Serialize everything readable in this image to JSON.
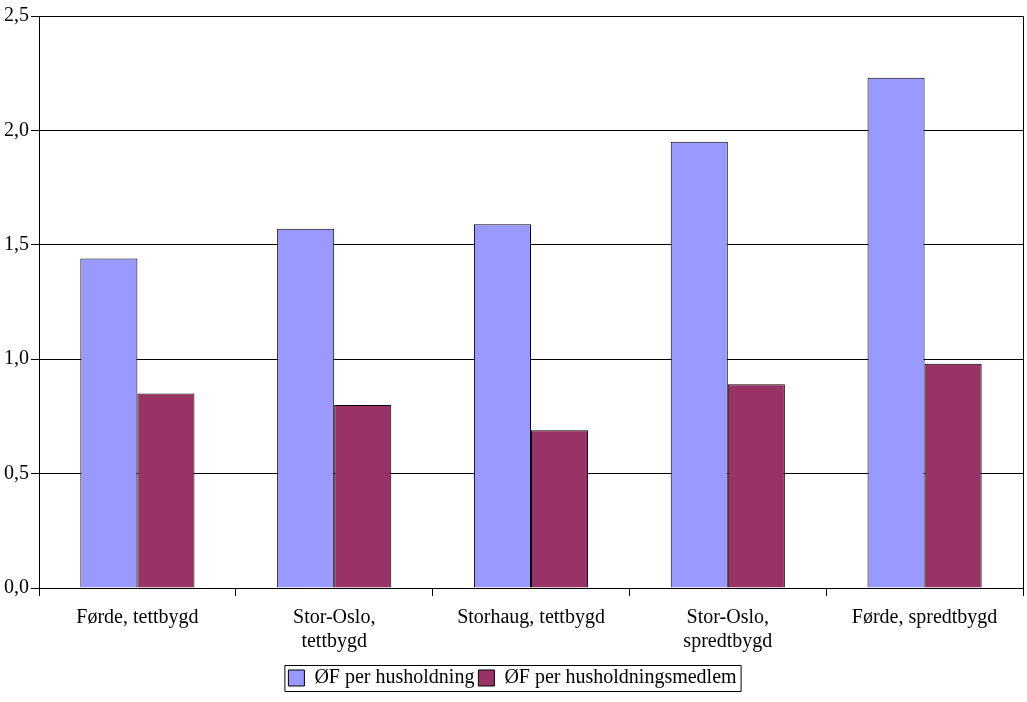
{
  "chart_data": {
    "type": "bar",
    "categories": [
      "Førde, tettbygd",
      "Stor-Oslo, tettbygd",
      "Storhaug, tettbygd",
      "Stor-Oslo, spredtbygd",
      "Førde, spredtbygd"
    ],
    "series": [
      {
        "name": "ØF per husholdning",
        "color": "#9999ff",
        "values": [
          1.44,
          1.57,
          1.59,
          1.95,
          2.23
        ]
      },
      {
        "name": "ØF per husholdningsmedlem",
        "color": "#993366",
        "values": [
          0.85,
          0.8,
          0.69,
          0.89,
          0.98
        ]
      }
    ],
    "ylim": [
      0,
      2.5
    ],
    "yticks": [
      {
        "value": 0,
        "label": "0,0"
      },
      {
        "value": 0.5,
        "label": "0,5"
      },
      {
        "value": 1,
        "label": "1,0"
      },
      {
        "value": 1.5,
        "label": "1,5"
      },
      {
        "value": 2,
        "label": "2,0"
      },
      {
        "value": 2.5,
        "label": "2,5"
      }
    ],
    "grid": "y",
    "legend": "bottom"
  }
}
